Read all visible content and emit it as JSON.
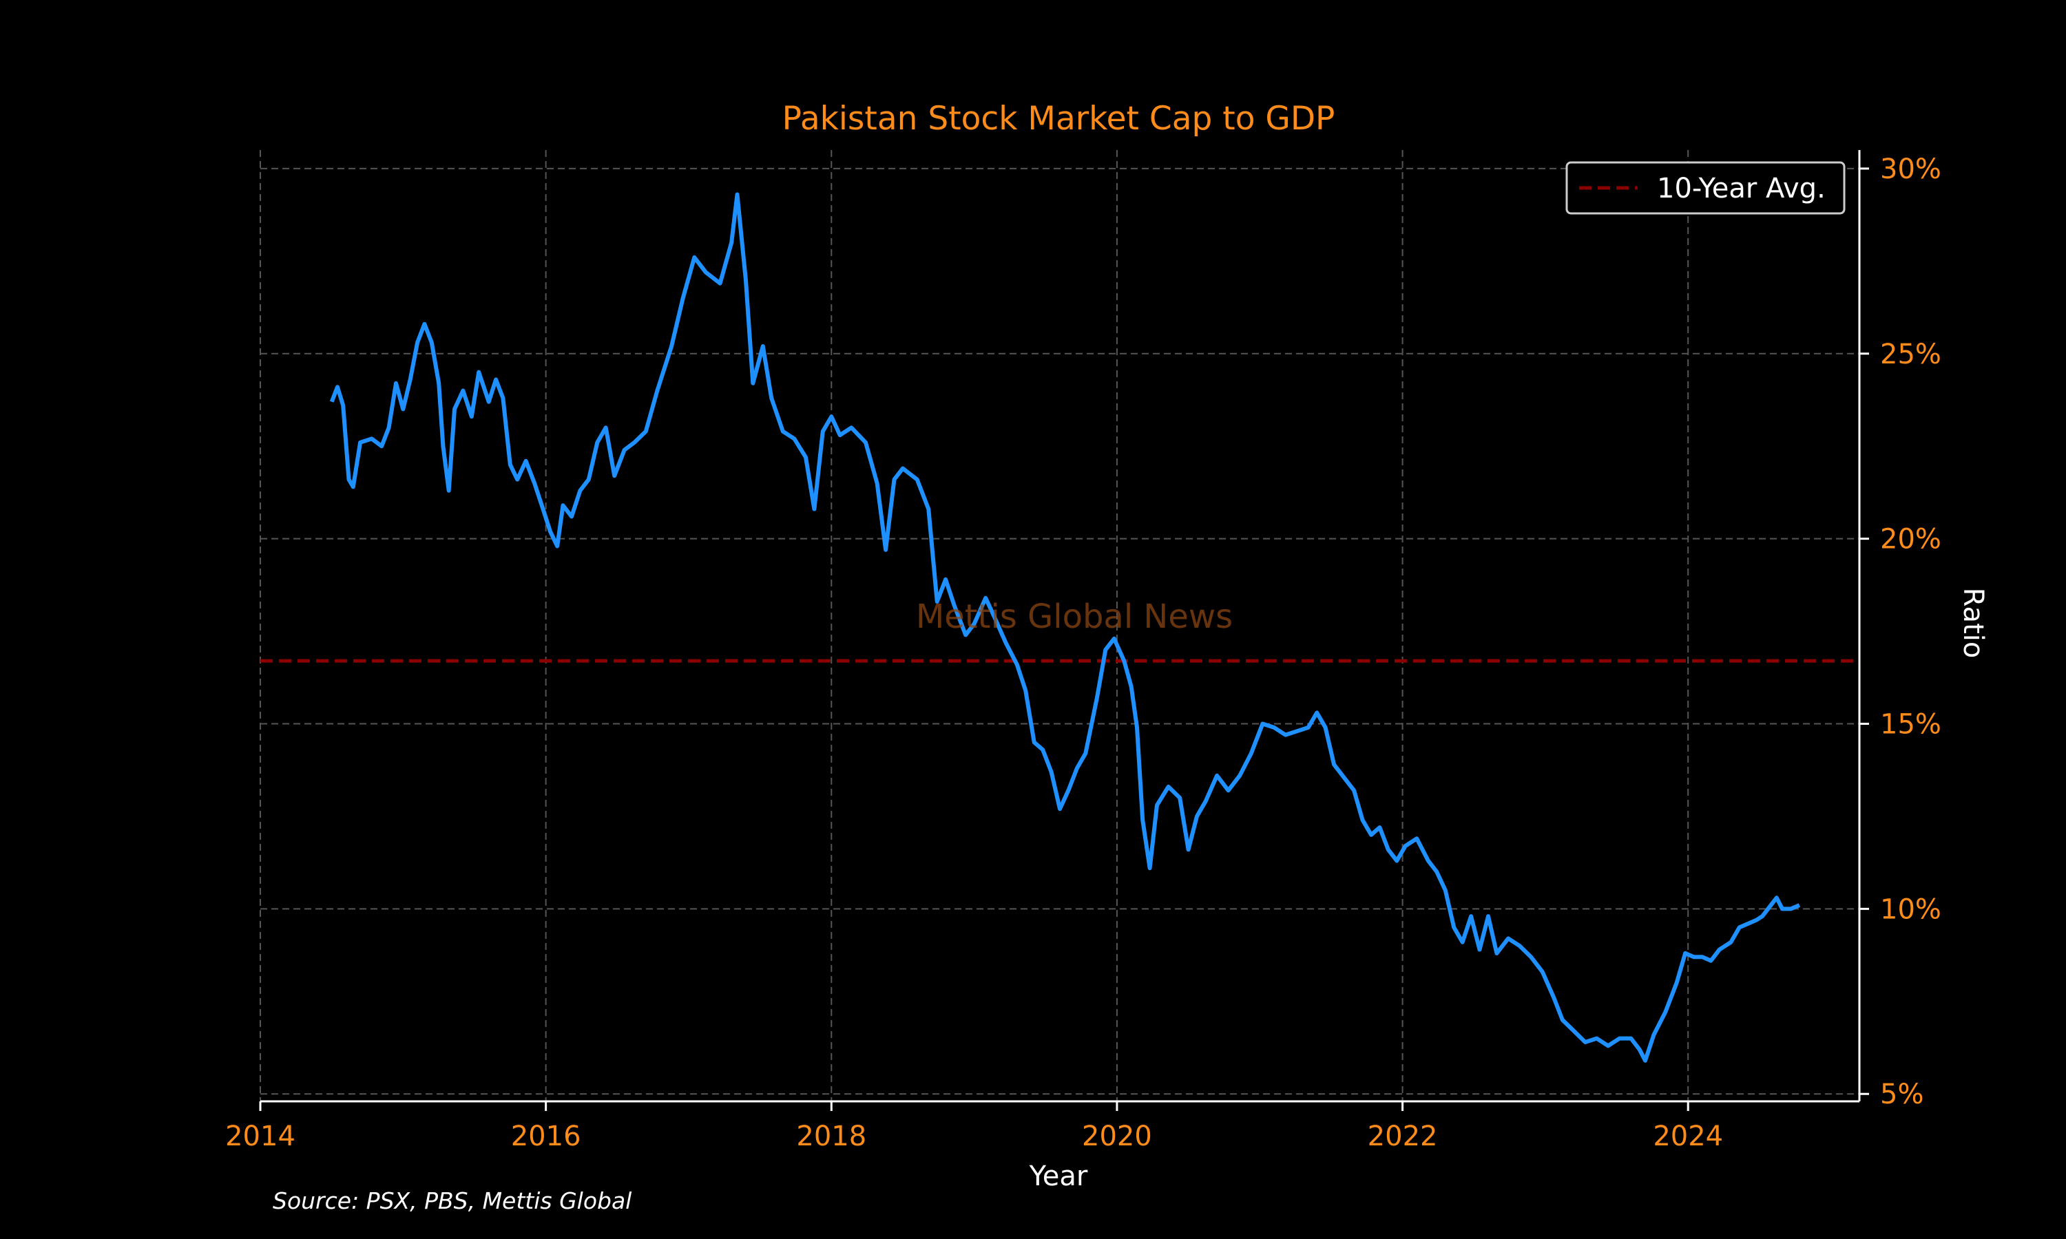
{
  "chart_data": {
    "type": "line",
    "title": "Pakistan Stock Market Cap to GDP",
    "xlabel": "Year",
    "ylabel": "Ratio",
    "source": "Source: PSX, PBS, Mettis Global",
    "watermark": "Mettis Global News",
    "xlim": [
      2014.0,
      2025.2
    ],
    "ylim": [
      4.8,
      30.5
    ],
    "x_ticks": [
      2014,
      2016,
      2018,
      2020,
      2022,
      2024
    ],
    "y_ticks": [
      5,
      10,
      15,
      20,
      25,
      30
    ],
    "y_tick_format": "{v}%",
    "y_axis_side": "right",
    "grid": true,
    "legend": {
      "position": "top-right",
      "entries": [
        "10-Year Avg."
      ]
    },
    "reference_line": {
      "name": "10-Year Avg.",
      "value": 16.7,
      "style": "dashed",
      "color": "#8b0000"
    },
    "series": [
      {
        "name": "",
        "color": "#1e90ff",
        "points": [
          [
            2014.5,
            23.7
          ],
          [
            2014.54,
            24.1
          ],
          [
            2014.58,
            23.6
          ],
          [
            2014.62,
            21.6
          ],
          [
            2014.65,
            21.4
          ],
          [
            2014.7,
            22.6
          ],
          [
            2014.78,
            22.7
          ],
          [
            2014.85,
            22.5
          ],
          [
            2014.9,
            23.0
          ],
          [
            2014.95,
            24.2
          ],
          [
            2015.0,
            23.5
          ],
          [
            2015.05,
            24.3
          ],
          [
            2015.1,
            25.3
          ],
          [
            2015.15,
            25.8
          ],
          [
            2015.2,
            25.3
          ],
          [
            2015.25,
            24.2
          ],
          [
            2015.28,
            22.5
          ],
          [
            2015.32,
            21.3
          ],
          [
            2015.36,
            23.5
          ],
          [
            2015.42,
            24.0
          ],
          [
            2015.48,
            23.3
          ],
          [
            2015.53,
            24.5
          ],
          [
            2015.6,
            23.7
          ],
          [
            2015.65,
            24.3
          ],
          [
            2015.7,
            23.8
          ],
          [
            2015.75,
            22.0
          ],
          [
            2015.8,
            21.6
          ],
          [
            2015.86,
            22.1
          ],
          [
            2015.92,
            21.5
          ],
          [
            2015.98,
            20.8
          ],
          [
            2016.03,
            20.2
          ],
          [
            2016.08,
            19.8
          ],
          [
            2016.12,
            20.9
          ],
          [
            2016.18,
            20.6
          ],
          [
            2016.24,
            21.3
          ],
          [
            2016.3,
            21.6
          ],
          [
            2016.36,
            22.6
          ],
          [
            2016.42,
            23.0
          ],
          [
            2016.48,
            21.7
          ],
          [
            2016.55,
            22.4
          ],
          [
            2016.62,
            22.6
          ],
          [
            2016.7,
            22.9
          ],
          [
            2016.78,
            24.0
          ],
          [
            2016.88,
            25.2
          ],
          [
            2016.96,
            26.5
          ],
          [
            2017.04,
            27.6
          ],
          [
            2017.12,
            27.2
          ],
          [
            2017.22,
            26.9
          ],
          [
            2017.3,
            28.0
          ],
          [
            2017.34,
            29.3
          ],
          [
            2017.4,
            27.0
          ],
          [
            2017.45,
            24.2
          ],
          [
            2017.52,
            25.2
          ],
          [
            2017.58,
            23.8
          ],
          [
            2017.66,
            22.9
          ],
          [
            2017.74,
            22.7
          ],
          [
            2017.82,
            22.2
          ],
          [
            2017.88,
            20.8
          ],
          [
            2017.94,
            22.9
          ],
          [
            2018.0,
            23.3
          ],
          [
            2018.06,
            22.8
          ],
          [
            2018.14,
            23.0
          ],
          [
            2018.24,
            22.6
          ],
          [
            2018.32,
            21.5
          ],
          [
            2018.38,
            19.7
          ],
          [
            2018.44,
            21.6
          ],
          [
            2018.5,
            21.9
          ],
          [
            2018.6,
            21.6
          ],
          [
            2018.68,
            20.8
          ],
          [
            2018.74,
            18.3
          ],
          [
            2018.8,
            18.9
          ],
          [
            2018.86,
            18.2
          ],
          [
            2018.94,
            17.4
          ],
          [
            2019.0,
            17.7
          ],
          [
            2019.08,
            18.4
          ],
          [
            2019.14,
            17.9
          ],
          [
            2019.22,
            17.2
          ],
          [
            2019.3,
            16.6
          ],
          [
            2019.36,
            15.9
          ],
          [
            2019.42,
            14.5
          ],
          [
            2019.48,
            14.3
          ],
          [
            2019.54,
            13.7
          ],
          [
            2019.6,
            12.7
          ],
          [
            2019.66,
            13.2
          ],
          [
            2019.72,
            13.8
          ],
          [
            2019.78,
            14.2
          ],
          [
            2019.86,
            15.7
          ],
          [
            2019.92,
            17.0
          ],
          [
            2019.98,
            17.3
          ],
          [
            2020.05,
            16.7
          ],
          [
            2020.1,
            16.0
          ],
          [
            2020.14,
            14.9
          ],
          [
            2020.18,
            12.4
          ],
          [
            2020.23,
            11.1
          ],
          [
            2020.28,
            12.8
          ],
          [
            2020.36,
            13.3
          ],
          [
            2020.44,
            13.0
          ],
          [
            2020.5,
            11.6
          ],
          [
            2020.56,
            12.5
          ],
          [
            2020.62,
            12.9
          ],
          [
            2020.7,
            13.6
          ],
          [
            2020.78,
            13.2
          ],
          [
            2020.86,
            13.6
          ],
          [
            2020.94,
            14.2
          ],
          [
            2021.02,
            15.0
          ],
          [
            2021.1,
            14.9
          ],
          [
            2021.18,
            14.7
          ],
          [
            2021.26,
            14.8
          ],
          [
            2021.34,
            14.9
          ],
          [
            2021.4,
            15.3
          ],
          [
            2021.46,
            14.9
          ],
          [
            2021.52,
            13.9
          ],
          [
            2021.6,
            13.5
          ],
          [
            2021.66,
            13.2
          ],
          [
            2021.72,
            12.4
          ],
          [
            2021.78,
            12.0
          ],
          [
            2021.84,
            12.2
          ],
          [
            2021.9,
            11.6
          ],
          [
            2021.96,
            11.3
          ],
          [
            2022.02,
            11.7
          ],
          [
            2022.1,
            11.9
          ],
          [
            2022.18,
            11.3
          ],
          [
            2022.24,
            11.0
          ],
          [
            2022.3,
            10.5
          ],
          [
            2022.36,
            9.5
          ],
          [
            2022.42,
            9.1
          ],
          [
            2022.48,
            9.8
          ],
          [
            2022.54,
            8.9
          ],
          [
            2022.6,
            9.8
          ],
          [
            2022.66,
            8.8
          ],
          [
            2022.74,
            9.2
          ],
          [
            2022.82,
            9.0
          ],
          [
            2022.9,
            8.7
          ],
          [
            2022.98,
            8.3
          ],
          [
            2023.06,
            7.6
          ],
          [
            2023.12,
            7.0
          ],
          [
            2023.2,
            6.7
          ],
          [
            2023.28,
            6.4
          ],
          [
            2023.36,
            6.5
          ],
          [
            2023.44,
            6.3
          ],
          [
            2023.52,
            6.5
          ],
          [
            2023.6,
            6.5
          ],
          [
            2023.66,
            6.2
          ],
          [
            2023.7,
            5.9
          ],
          [
            2023.76,
            6.6
          ],
          [
            2023.84,
            7.2
          ],
          [
            2023.92,
            8.0
          ],
          [
            2023.98,
            8.8
          ],
          [
            2024.04,
            8.7
          ],
          [
            2024.1,
            8.7
          ],
          [
            2024.16,
            8.6
          ],
          [
            2024.22,
            8.9
          ],
          [
            2024.3,
            9.1
          ],
          [
            2024.36,
            9.5
          ],
          [
            2024.42,
            9.6
          ],
          [
            2024.48,
            9.7
          ],
          [
            2024.52,
            9.8
          ],
          [
            2024.58,
            10.1
          ],
          [
            2024.62,
            10.3
          ],
          [
            2024.66,
            10.0
          ],
          [
            2024.72,
            10.0
          ],
          [
            2024.78,
            10.1
          ]
        ]
      }
    ]
  }
}
